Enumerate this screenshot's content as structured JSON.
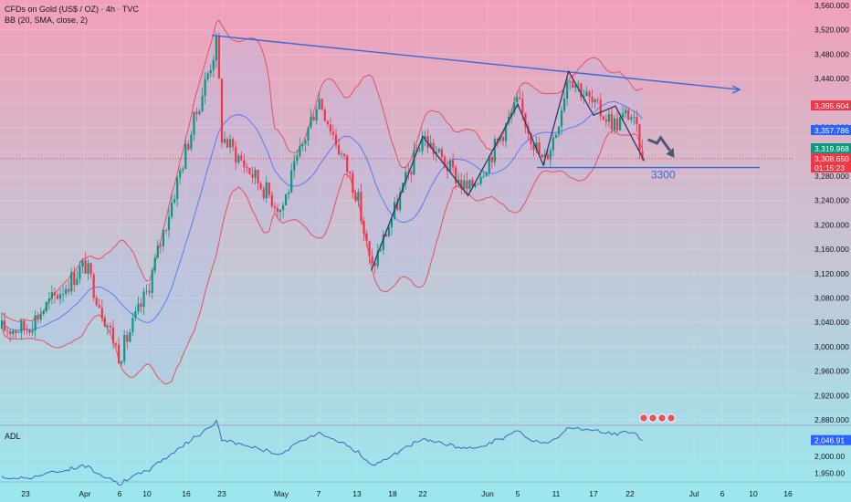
{
  "header": {
    "symbol": "CFDs on Gold (US$ / OZ) · 4h · TVC",
    "indicator": "BB (20, SMA, close, 2)"
  },
  "price_axis": {
    "ticks": [
      "3,560.000",
      "3,520.000",
      "3,480.000",
      "3,440.000",
      "3,400.000",
      "3,360.000",
      "3,320.000",
      "3,280.000",
      "3,240.000",
      "3,200.000",
      "3,160.000",
      "3,120.000",
      "3,080.000",
      "3,040.000",
      "3,000.000",
      "2,960.000",
      "2,920.000",
      "2,880.000"
    ],
    "badges": [
      {
        "text": "3,395.604",
        "color": "#f23645"
      },
      {
        "text": "3,357.786",
        "color": "#2962ff"
      },
      {
        "text": "3,319.968",
        "color": "#089981"
      },
      {
        "text": "3,308.650",
        "color": "#f23645"
      },
      {
        "text": "01:15:23",
        "color": "#f23645"
      }
    ]
  },
  "time_axis": {
    "labels": [
      "23",
      "Apr",
      "6",
      "10",
      "16",
      "23",
      "May",
      "7",
      "13",
      "18",
      "22",
      "Jun",
      "5",
      "11",
      "17",
      "22",
      "Jul",
      "6",
      "10",
      "16"
    ]
  },
  "annotation": {
    "text": "3300"
  },
  "adl": {
    "label": "ADL",
    "ticks": [
      "2,000.00",
      "1,950.00"
    ],
    "badge": {
      "text": "2,046.91",
      "color": "#2962ff"
    }
  },
  "colors": {
    "bg_top": "#f2a0b9",
    "bg_bottom": "#9ae8ee",
    "up": "#089981",
    "down": "#f23645",
    "bb_outer": "#e8505b",
    "bb_mid": "#2962ff",
    "bb_fill": "#b8bde8",
    "trend": "#3a6ad8",
    "zigzag": "#2a3a6a",
    "adl_line": "#3a68c8"
  },
  "chart_data": {
    "type": "candlestick",
    "title": "CFDs on Gold (US$ / OZ) · 4h · TVC",
    "indicator": "BB (20, SMA, close, 2)",
    "ylim": [
      2880,
      3560
    ],
    "x": [
      "Mar 23",
      "Apr 1",
      "Apr 6",
      "Apr 10",
      "Apr 16",
      "Apr 23",
      "May 1",
      "May 7",
      "May 13",
      "May 18",
      "May 22",
      "Jun 1",
      "Jun 5",
      "Jun 11",
      "Jun 17",
      "Jun 22",
      "Jul 1",
      "Jul 6",
      "Jul 10",
      "Jul 16"
    ],
    "close_path": [
      {
        "x": "Mar 23",
        "close": 3030
      },
      {
        "x": "Apr 1",
        "close": 3135
      },
      {
        "x": "Apr 6",
        "close": 2985
      },
      {
        "x": "Apr 10",
        "close": 3090
      },
      {
        "x": "Apr 16",
        "close": 3325
      },
      {
        "x": "Apr 22",
        "close": 3500
      },
      {
        "x": "Apr 23",
        "close": 3345
      },
      {
        "x": "May 1",
        "close": 3225
      },
      {
        "x": "May 7",
        "close": 3410
      },
      {
        "x": "May 13",
        "close": 3250
      },
      {
        "x": "May 15",
        "close": 3125
      },
      {
        "x": "May 18",
        "close": 3215
      },
      {
        "x": "May 22",
        "close": 3345
      },
      {
        "x": "May 29",
        "close": 3255
      },
      {
        "x": "Jun 1",
        "close": 3305
      },
      {
        "x": "Jun 5",
        "close": 3400
      },
      {
        "x": "Jun 9",
        "close": 3300
      },
      {
        "x": "Jun 11",
        "close": 3355
      },
      {
        "x": "Jun 13",
        "close": 3450
      },
      {
        "x": "Jun 17",
        "close": 3395
      },
      {
        "x": "Jun 20",
        "close": 3365
      },
      {
        "x": "Jun 22",
        "close": 3385
      },
      {
        "x": "Jun 24",
        "close": 3308.65
      }
    ],
    "bollinger": {
      "period": 20,
      "mult": 2,
      "upper_last": 3395.604,
      "middle_last": 3357.786,
      "lower_last": 3319.968
    },
    "last_price": 3308.65,
    "support_level": 3300,
    "annotations": [
      "3300"
    ],
    "adl": {
      "last": 2046.91
    }
  }
}
